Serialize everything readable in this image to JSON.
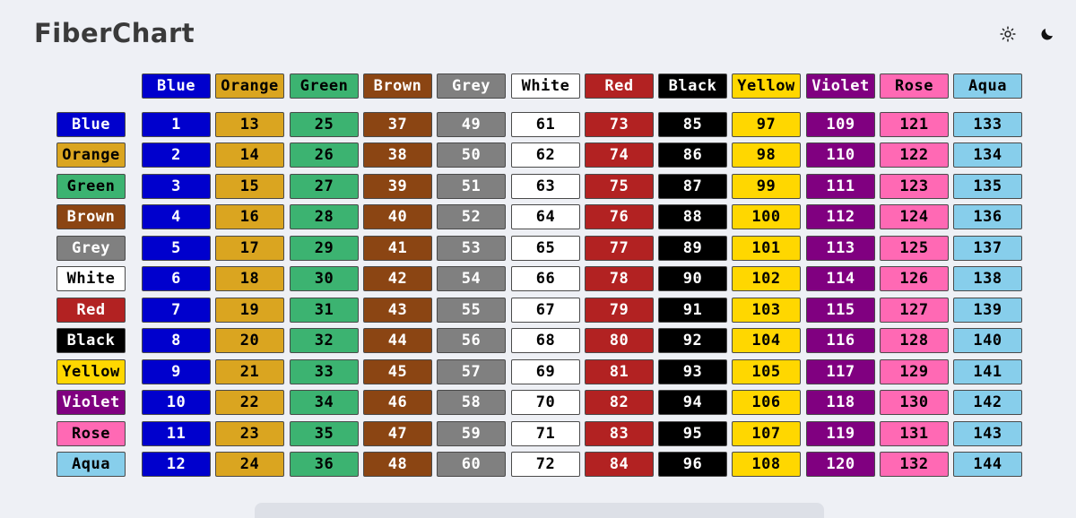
{
  "app": {
    "logo": "FiberChart"
  },
  "header": {
    "sun_icon": "sun-icon",
    "moon_icon": "moon-icon"
  },
  "colors": [
    {
      "name": "Blue",
      "bg": "#0000cd",
      "fg": "#ffffff"
    },
    {
      "name": "Orange",
      "bg": "#daa520",
      "fg": "#000000"
    },
    {
      "name": "Green",
      "bg": "#3cb371",
      "fg": "#000000"
    },
    {
      "name": "Brown",
      "bg": "#8b4513",
      "fg": "#ffffff"
    },
    {
      "name": "Grey",
      "bg": "#808080",
      "fg": "#ffffff"
    },
    {
      "name": "White",
      "bg": "#ffffff",
      "fg": "#000000"
    },
    {
      "name": "Red",
      "bg": "#b22222",
      "fg": "#ffffff"
    },
    {
      "name": "Black",
      "bg": "#000000",
      "fg": "#ffffff"
    },
    {
      "name": "Yellow",
      "bg": "#ffd700",
      "fg": "#000000"
    },
    {
      "name": "Violet",
      "bg": "#800080",
      "fg": "#ffffff"
    },
    {
      "name": "Rose",
      "bg": "#ff69b4",
      "fg": "#000000"
    },
    {
      "name": "Aqua",
      "bg": "#87ceeb",
      "fg": "#000000"
    }
  ],
  "grid": [
    [
      "1",
      "13",
      "25",
      "37",
      "49",
      "61",
      "73",
      "85",
      "97",
      "109",
      "121",
      "133"
    ],
    [
      "2",
      "14",
      "26",
      "38",
      "50",
      "62",
      "74",
      "86",
      "98",
      "110",
      "122",
      "134"
    ],
    [
      "3",
      "15",
      "27",
      "39",
      "51",
      "63",
      "75",
      "87",
      "99",
      "111",
      "123",
      "135"
    ],
    [
      "4",
      "16",
      "28",
      "40",
      "52",
      "64",
      "76",
      "88",
      "100",
      "112",
      "124",
      "136"
    ],
    [
      "5",
      "17",
      "29",
      "41",
      "53",
      "65",
      "77",
      "89",
      "101",
      "113",
      "125",
      "137"
    ],
    [
      "6",
      "18",
      "30",
      "42",
      "54",
      "66",
      "78",
      "90",
      "102",
      "114",
      "126",
      "138"
    ],
    [
      "7",
      "19",
      "31",
      "43",
      "55",
      "67",
      "79",
      "91",
      "103",
      "115",
      "127",
      "139"
    ],
    [
      "8",
      "20",
      "32",
      "44",
      "56",
      "68",
      "80",
      "92",
      "104",
      "116",
      "128",
      "140"
    ],
    [
      "9",
      "21",
      "33",
      "45",
      "57",
      "69",
      "81",
      "93",
      "105",
      "117",
      "129",
      "141"
    ],
    [
      "10",
      "22",
      "34",
      "46",
      "58",
      "70",
      "82",
      "94",
      "106",
      "118",
      "130",
      "142"
    ],
    [
      "11",
      "23",
      "35",
      "47",
      "59",
      "71",
      "83",
      "95",
      "107",
      "119",
      "131",
      "143"
    ],
    [
      "12",
      "24",
      "36",
      "48",
      "60",
      "72",
      "84",
      "96",
      "108",
      "120",
      "132",
      "144"
    ]
  ]
}
